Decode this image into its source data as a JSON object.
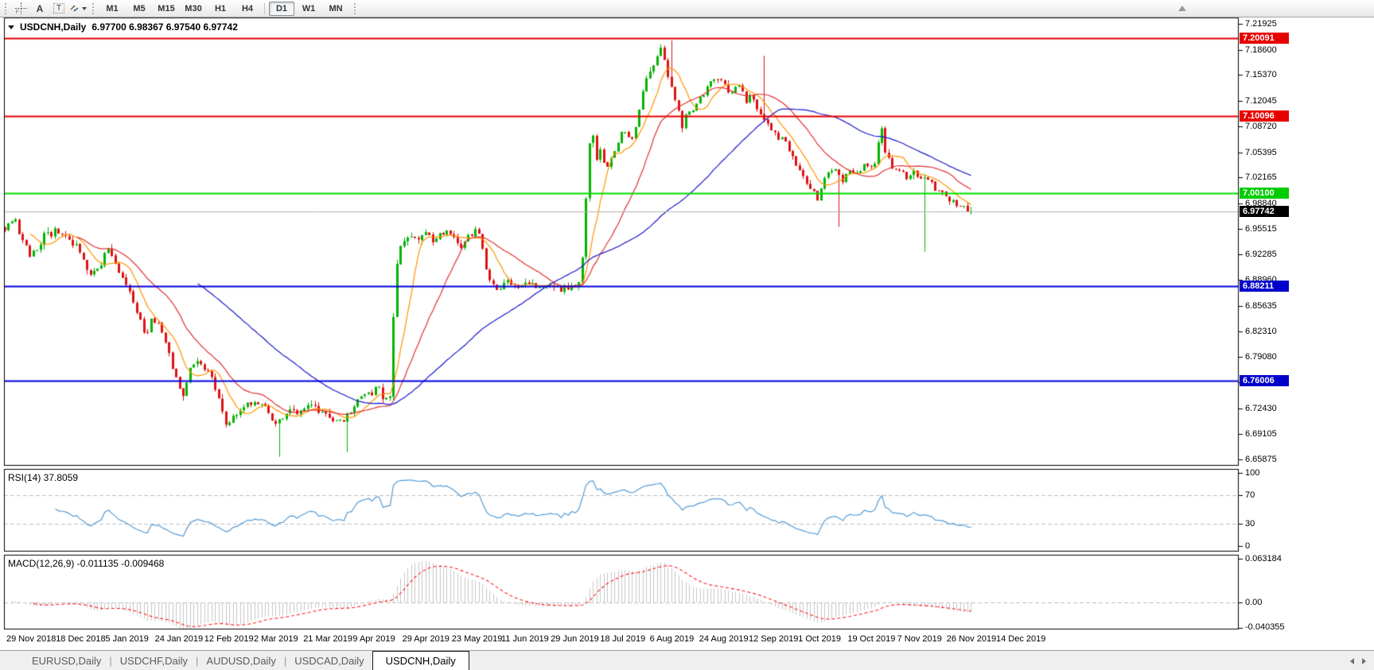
{
  "toolbar": {
    "tools": [
      {
        "name": "crosshair",
        "glyph": ""
      },
      {
        "name": "text-cursor",
        "glyph": "A"
      },
      {
        "name": "text-label",
        "glyph": "T"
      },
      {
        "name": "arrows-style",
        "glyph": ""
      }
    ],
    "timeframes": [
      {
        "label": "M1",
        "active": false
      },
      {
        "label": "M5",
        "active": false
      },
      {
        "label": "M15",
        "active": false
      },
      {
        "label": "M30",
        "active": false
      },
      {
        "label": "H1",
        "active": false
      },
      {
        "label": "H4",
        "active": false
      },
      {
        "label": "D1",
        "active": true,
        "divider_before": true
      },
      {
        "label": "W1",
        "active": false
      },
      {
        "label": "MN",
        "active": false
      }
    ]
  },
  "chart": {
    "symbol": "USDCNH,Daily",
    "ohlc_text": "6.97700 6.98367 6.97540 6.97742"
  },
  "panes": {
    "rsi": {
      "label": "RSI(14) 37.8059"
    },
    "macd": {
      "label": "MACD(12,26,9) -0.011135 -0.009468"
    }
  },
  "price_axis": {
    "ticks": [
      "7.21925",
      "7.18600",
      "7.15370",
      "7.12045",
      "7.08720",
      "7.05395",
      "7.02165",
      "6.98840",
      "6.95515",
      "6.92285",
      "6.88960",
      "6.85635",
      "6.82310",
      "6.79080",
      "6.75755",
      "6.72430",
      "6.69105",
      "6.65875"
    ],
    "badges": [
      {
        "text": "7.20091",
        "price": 7.20091,
        "bg": "#e60000"
      },
      {
        "text": "7.10096",
        "price": 7.10096,
        "bg": "#e60000"
      },
      {
        "text": "7.00100",
        "price": 7.001,
        "bg": "#00cc00"
      },
      {
        "text": "6.97742",
        "price": 6.97742,
        "bg": "#000000"
      },
      {
        "text": "6.88211",
        "price": 6.88211,
        "bg": "#0000cc"
      },
      {
        "text": "6.76006",
        "price": 6.76006,
        "bg": "#0000cc"
      }
    ]
  },
  "rsi_axis": {
    "ticks": [
      "100",
      "70",
      "30",
      "0"
    ]
  },
  "macd_axis": {
    "ticks": [
      "0.063184",
      "0.00",
      "-0.040355"
    ]
  },
  "date_axis": {
    "labels": [
      "29 Nov 2018",
      "18 Dec 2018",
      "5 Jan 2019",
      "24 Jan 2019",
      "12 Feb 2019",
      "2 Mar 2019",
      "21 Mar 2019",
      "9 Apr 2019",
      "29 Apr 2019",
      "23 May 2019",
      "11 Jun 2019",
      "29 Jun 2019",
      "18 Jul 2019",
      "6 Aug 2019",
      "24 Aug 2019",
      "12 Sep 2019",
      "1 Oct 2019",
      "19 Oct 2019",
      "7 Nov 2019",
      "26 Nov 2019",
      "14 Dec 2019"
    ]
  },
  "tabs": {
    "items": [
      {
        "label": "EURUSD,Daily",
        "active": false
      },
      {
        "label": "USDCHF,Daily",
        "active": false
      },
      {
        "label": "AUDUSD,Daily",
        "active": false
      },
      {
        "label": "USDCAD,Daily",
        "active": false
      },
      {
        "label": "USDCNH,Daily",
        "active": true
      }
    ]
  },
  "chart_data": {
    "type": "candlestick",
    "symbol": "USDCNH",
    "timeframe": "Daily",
    "current_ohlc": {
      "open": 6.977,
      "high": 6.98367,
      "low": 6.9754,
      "close": 6.97742
    },
    "y_axis": {
      "max": 7.21925,
      "min": 6.65875
    },
    "bar_count": 272,
    "seed": 7,
    "noise": 0.009,
    "colors": {
      "bull": "#00b400",
      "bear": "#de1212"
    },
    "close_path": [
      [
        0,
        6.958
      ],
      [
        0.01,
        6.972
      ],
      [
        0.018,
        6.938
      ],
      [
        0.028,
        6.92
      ],
      [
        0.04,
        6.946
      ],
      [
        0.052,
        6.952
      ],
      [
        0.065,
        6.94
      ],
      [
        0.075,
        6.93
      ],
      [
        0.088,
        6.9
      ],
      [
        0.098,
        6.906
      ],
      [
        0.106,
        6.928
      ],
      [
        0.116,
        6.905
      ],
      [
        0.126,
        6.88
      ],
      [
        0.134,
        6.856
      ],
      [
        0.146,
        6.816
      ],
      [
        0.153,
        6.842
      ],
      [
        0.161,
        6.828
      ],
      [
        0.168,
        6.802
      ],
      [
        0.178,
        6.756
      ],
      [
        0.185,
        6.742
      ],
      [
        0.194,
        6.786
      ],
      [
        0.203,
        6.78
      ],
      [
        0.211,
        6.77
      ],
      [
        0.22,
        6.746
      ],
      [
        0.228,
        6.706
      ],
      [
        0.238,
        6.712
      ],
      [
        0.248,
        6.726
      ],
      [
        0.26,
        6.736
      ],
      [
        0.27,
        6.722
      ],
      [
        0.28,
        6.706
      ],
      [
        0.287,
        6.71
      ],
      [
        0.294,
        6.72
      ],
      [
        0.304,
        6.718
      ],
      [
        0.313,
        6.73
      ],
      [
        0.323,
        6.722
      ],
      [
        0.336,
        6.712
      ],
      [
        0.348,
        6.706
      ],
      [
        0.356,
        6.72
      ],
      [
        0.363,
        6.732
      ],
      [
        0.37,
        6.74
      ],
      [
        0.378,
        6.742
      ],
      [
        0.386,
        6.752
      ],
      [
        0.393,
        6.736
      ],
      [
        0.399,
        6.744
      ],
      [
        0.403,
        6.86
      ],
      [
        0.407,
        6.93
      ],
      [
        0.413,
        6.94
      ],
      [
        0.42,
        6.95
      ],
      [
        0.427,
        6.944
      ],
      [
        0.435,
        6.952
      ],
      [
        0.443,
        6.94
      ],
      [
        0.451,
        6.948
      ],
      [
        0.458,
        6.958
      ],
      [
        0.465,
        6.942
      ],
      [
        0.471,
        6.93
      ],
      [
        0.477,
        6.94
      ],
      [
        0.484,
        6.95
      ],
      [
        0.489,
        6.955
      ],
      [
        0.495,
        6.928
      ],
      [
        0.501,
        6.888
      ],
      [
        0.509,
        6.88
      ],
      [
        0.519,
        6.886
      ],
      [
        0.529,
        6.878
      ],
      [
        0.539,
        6.886
      ],
      [
        0.55,
        6.88
      ],
      [
        0.56,
        6.886
      ],
      [
        0.57,
        6.88
      ],
      [
        0.579,
        6.878
      ],
      [
        0.588,
        6.882
      ],
      [
        0.596,
        6.886
      ],
      [
        0.6,
        6.96
      ],
      [
        0.604,
        7.052
      ],
      [
        0.608,
        7.086
      ],
      [
        0.612,
        7.046
      ],
      [
        0.617,
        7.06
      ],
      [
        0.622,
        7.026
      ],
      [
        0.627,
        7.046
      ],
      [
        0.634,
        7.06
      ],
      [
        0.641,
        7.086
      ],
      [
        0.647,
        7.066
      ],
      [
        0.654,
        7.092
      ],
      [
        0.661,
        7.132
      ],
      [
        0.667,
        7.16
      ],
      [
        0.673,
        7.166
      ],
      [
        0.679,
        7.186
      ],
      [
        0.684,
        7.162
      ],
      [
        0.689,
        7.142
      ],
      [
        0.696,
        7.116
      ],
      [
        0.701,
        7.086
      ],
      [
        0.707,
        7.106
      ],
      [
        0.714,
        7.112
      ],
      [
        0.721,
        7.126
      ],
      [
        0.727,
        7.14
      ],
      [
        0.734,
        7.148
      ],
      [
        0.741,
        7.152
      ],
      [
        0.747,
        7.136
      ],
      [
        0.754,
        7.128
      ],
      [
        0.761,
        7.146
      ],
      [
        0.767,
        7.12
      ],
      [
        0.774,
        7.126
      ],
      [
        0.781,
        7.106
      ],
      [
        0.789,
        7.09
      ],
      [
        0.797,
        7.078
      ],
      [
        0.804,
        7.07
      ],
      [
        0.811,
        7.06
      ],
      [
        0.819,
        7.04
      ],
      [
        0.827,
        7.024
      ],
      [
        0.834,
        7.008
      ],
      [
        0.841,
        6.992
      ],
      [
        0.847,
        7.02
      ],
      [
        0.854,
        7.036
      ],
      [
        0.861,
        7.026
      ],
      [
        0.867,
        7.018
      ],
      [
        0.874,
        7.03
      ],
      [
        0.881,
        7.028
      ],
      [
        0.889,
        7.036
      ],
      [
        0.895,
        7.03
      ],
      [
        0.901,
        7.042
      ],
      [
        0.907,
        7.09
      ],
      [
        0.912,
        7.052
      ],
      [
        0.919,
        7.036
      ],
      [
        0.927,
        7.03
      ],
      [
        0.934,
        7.022
      ],
      [
        0.941,
        7.028
      ],
      [
        0.949,
        7.02
      ],
      [
        0.956,
        7.014
      ],
      [
        0.964,
        7.008
      ],
      [
        0.971,
        7.0
      ],
      [
        0.979,
        6.992
      ],
      [
        0.987,
        6.988
      ],
      [
        1,
        6.977
      ]
    ],
    "wick_events": [
      {
        "f": 0.284,
        "low": 6.662
      },
      {
        "f": 0.354,
        "low": 6.668
      },
      {
        "f": 0.691,
        "high": 7.198
      },
      {
        "f": 0.786,
        "high": 7.178
      },
      {
        "f": 0.862,
        "low": 6.958
      },
      {
        "f": 0.951,
        "low": 6.926
      }
    ],
    "moving_averages": [
      {
        "period": 8,
        "color": "#ff9500"
      },
      {
        "period": 21,
        "color": "#e33030"
      },
      {
        "period": 55,
        "color": "#1818cc"
      }
    ],
    "horizontal_lines": [
      {
        "price": 7.20091,
        "color": "#e60000",
        "width": 2
      },
      {
        "price": 7.10096,
        "color": "#e60000",
        "width": 2
      },
      {
        "price": 7.001,
        "color": "#00dd00",
        "width": 2
      },
      {
        "price": 6.97742,
        "color": "#b4b4b4",
        "width": 1
      },
      {
        "price": 6.88211,
        "color": "#0000dd",
        "width": 2
      },
      {
        "price": 6.76006,
        "color": "#0000dd",
        "width": 2
      }
    ],
    "rsi": {
      "period": 14,
      "current": 37.8059,
      "levels": [
        70,
        30
      ],
      "color": "#559bd4"
    },
    "macd": {
      "fast": 12,
      "slow": 26,
      "signal": 9,
      "current_macd": -0.011135,
      "current_signal": -0.009468,
      "axis_max": 0.063184,
      "axis_min": -0.040355,
      "hist_color": "#c6c6c6",
      "signal_color": "#ff1e1e"
    }
  }
}
